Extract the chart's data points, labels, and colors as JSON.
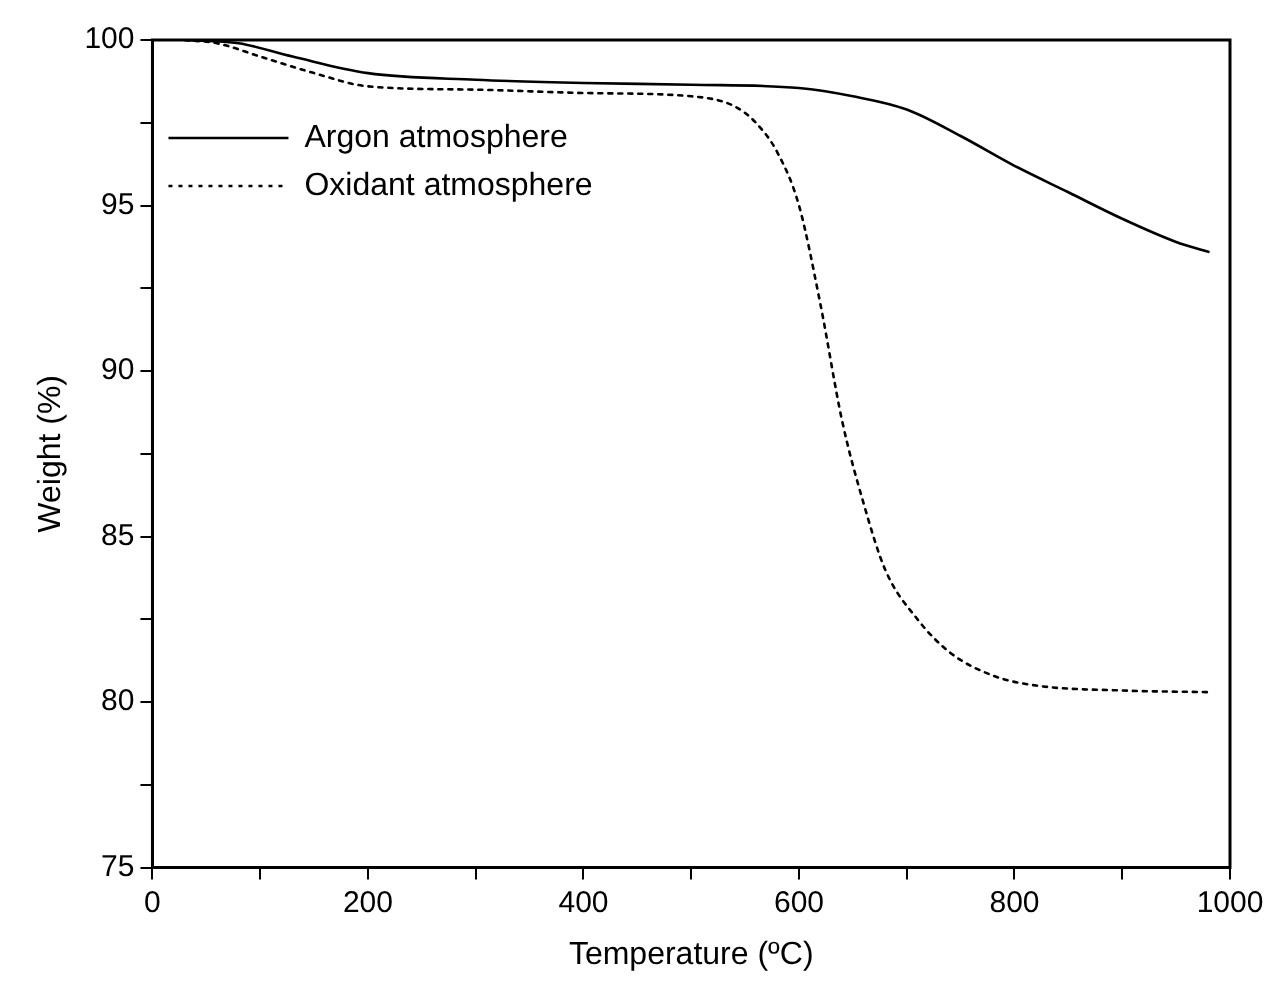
{
  "chart_data": {
    "type": "line",
    "xlabel": "Temperature (ºC)",
    "ylabel": "Weight (%)",
    "xlim": [
      0,
      1000
    ],
    "xticks": [
      0,
      {
        "value": 100,
        "label": null
      },
      200,
      {
        "value": 300,
        "label": null
      },
      400,
      {
        "value": 500,
        "label": null
      },
      600,
      {
        "value": 700,
        "label": null
      },
      800,
      {
        "value": 900,
        "label": null
      },
      1000
    ],
    "ylim": [
      75,
      100
    ],
    "yticks": [
      75,
      {
        "value": 77.5,
        "label": null
      },
      80,
      {
        "value": 82.5,
        "label": null
      },
      85,
      {
        "value": 87.5,
        "label": null
      },
      90,
      {
        "value": 92.5,
        "label": null
      },
      95,
      {
        "value": 97.5,
        "label": null
      },
      100
    ],
    "grid": false,
    "legend": "top left",
    "marker": "none",
    "series": [
      {
        "name": "Argon atmosphere",
        "color": "#000000",
        "line_style": "solid",
        "x": [
          30,
          80,
          130,
          200,
          300,
          400,
          500,
          600,
          650,
          700,
          750,
          800,
          850,
          900,
          950,
          980
        ],
        "values": [
          100,
          99.9,
          99.5,
          99.0,
          98.8,
          98.7,
          98.65,
          98.55,
          98.3,
          97.9,
          97.1,
          96.2,
          95.4,
          94.6,
          93.9,
          93.6
        ]
      },
      {
        "name": "Oxidant atmosphere",
        "color": "#000000",
        "line_style": "dotted",
        "x": [
          30,
          60,
          100,
          150,
          200,
          300,
          400,
          500,
          540,
          560,
          580,
          600,
          620,
          640,
          660,
          680,
          710,
          740,
          780,
          820,
          900,
          980
        ],
        "values": [
          100,
          99.9,
          99.5,
          99.0,
          98.6,
          98.5,
          98.4,
          98.3,
          98.0,
          97.5,
          96.6,
          95.0,
          92.0,
          88.5,
          86.0,
          84.0,
          82.5,
          81.5,
          80.8,
          80.5,
          80.35,
          80.3
        ]
      }
    ]
  }
}
